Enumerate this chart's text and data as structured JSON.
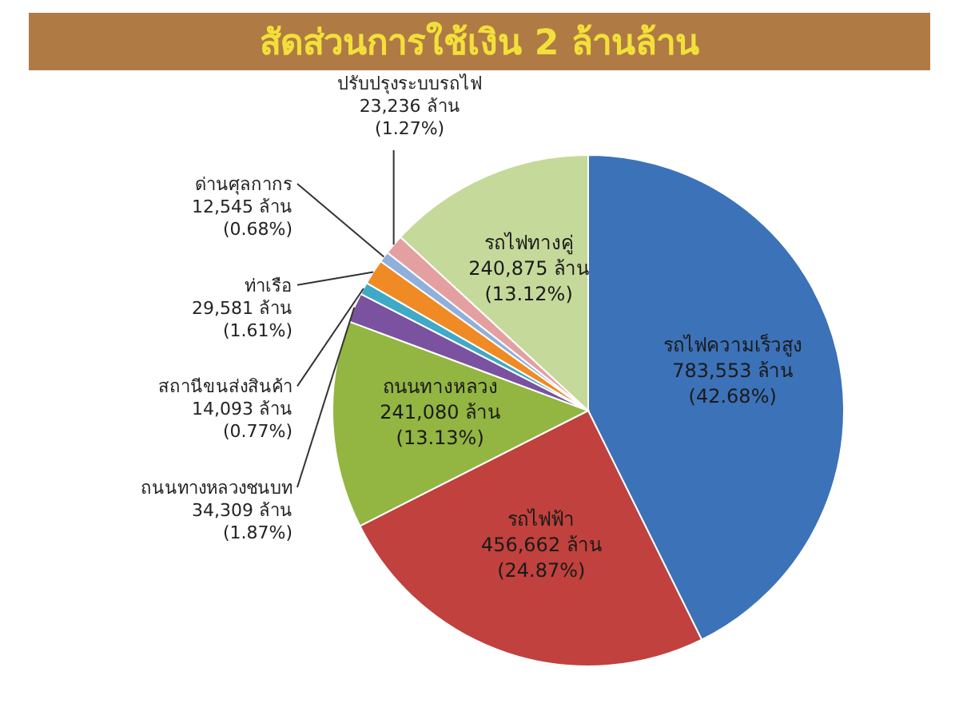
{
  "chart_data": {
    "type": "pie",
    "title": "สัดส่วนการใช้เงิน 2 ล้านล้าน",
    "categories": [
      "รถไฟความเร็วสูง",
      "รถไฟฟ้า",
      "ถนนทางหลวง",
      "ถนนทางหลวงชนบท",
      "สถานีขนส่งสินค้า",
      "ท่าเรือ",
      "ด่านศุลกากร",
      "ปรับปรุงระบบรถไฟ",
      "รถไฟทางคู่"
    ],
    "values": [
      783553,
      456662,
      241080,
      34309,
      14093,
      29581,
      12545,
      23236,
      240875
    ],
    "value_labels": [
      "783,553 ล้าน (42.68%)",
      "456,662 ล้าน (24.87%)",
      "241,080 ล้าน (13.13%)",
      "34,309 ล้าน (1.87%)",
      "14,093 ล้าน (0.77%)",
      "29,581 ล้าน (1.61%)",
      "12,545 ล้าน (0.68%)",
      "23,236 ล้าน (1.27%)",
      "240,875 ล้าน (13.12%)"
    ],
    "colors": [
      "#3c72b8",
      "#c0413d",
      "#93b542",
      "#7a52a0",
      "#3fa9c8",
      "#f08a24",
      "#8fb0dc",
      "#e4a0a0",
      "#c5d99a"
    ],
    "legend": false
  }
}
